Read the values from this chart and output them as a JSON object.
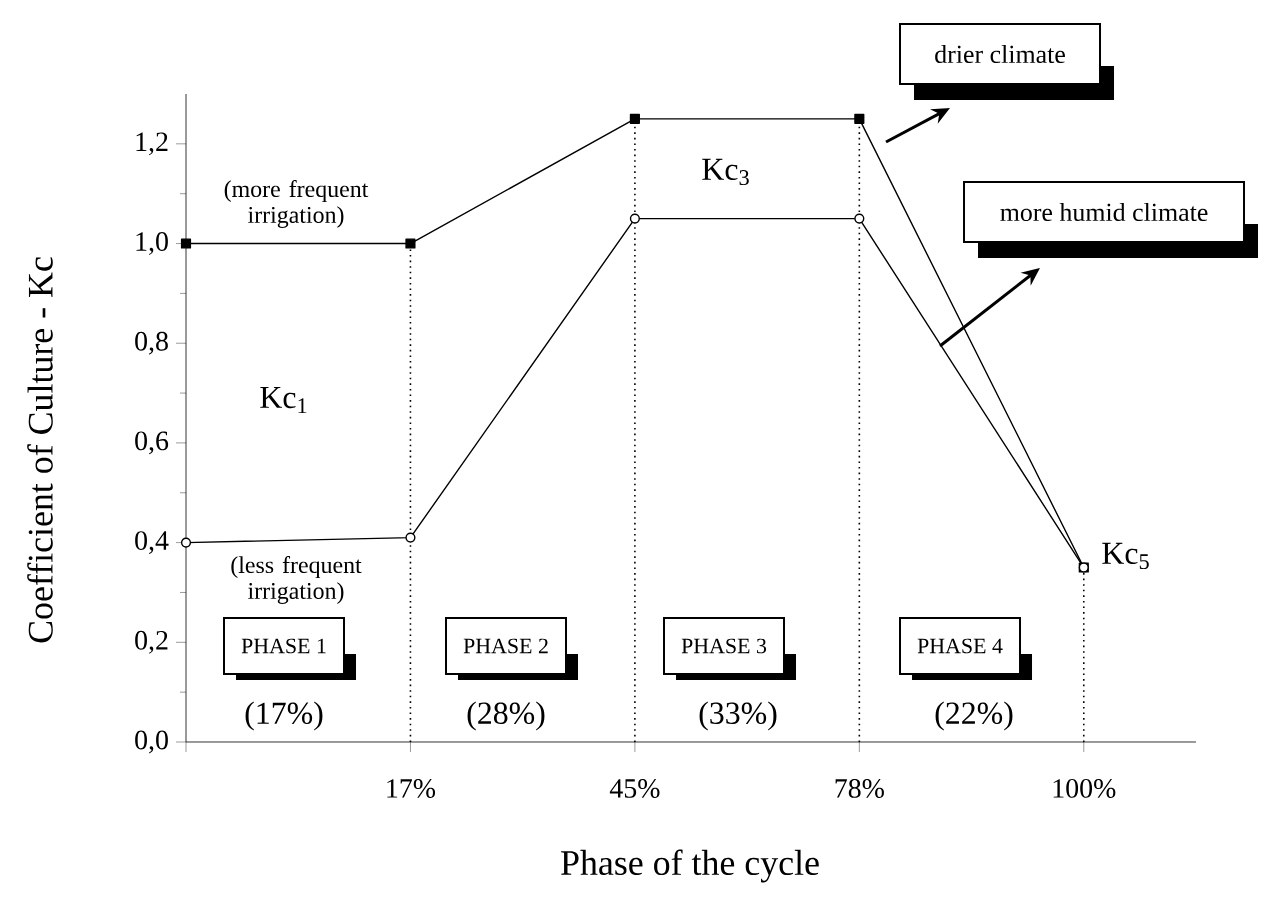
{
  "chart_data": {
    "type": "line",
    "xlabel": "Phase of the cycle",
    "ylabel": "Coefficient of Culture - Kc",
    "categories": [
      null,
      "17%",
      "45%",
      "78%",
      "100%"
    ],
    "series": [
      {
        "name": "drier climate",
        "color": "#000000",
        "marker": "square",
        "values": [
          1.0,
          1.0,
          1.25,
          1.25,
          0.35
        ]
      },
      {
        "name": "more humid climate",
        "color": "#000000",
        "marker": "circle",
        "values": [
          0.4,
          0.41,
          1.05,
          1.05,
          0.35
        ]
      }
    ],
    "ylim": [
      0,
      1.3
    ],
    "yticks": [
      {
        "value": 0,
        "label": "0,0"
      },
      {
        "value": 0.2,
        "label": "0,2"
      },
      {
        "value": 0.4,
        "label": "0,4"
      },
      {
        "value": 0.6,
        "label": "0,6"
      },
      {
        "value": 0.8,
        "label": "0,8"
      },
      {
        "value": 1.0,
        "label": "1,0"
      },
      {
        "value": 1.2,
        "label": "1,2"
      }
    ],
    "ref_lines": [
      {
        "axis": "x",
        "value": "17%",
        "color": "#000000",
        "line_style": "dotted"
      },
      {
        "axis": "x",
        "value": "45%",
        "color": "#000000",
        "line_style": "dotted"
      },
      {
        "axis": "x",
        "value": "78%",
        "color": "#000000",
        "line_style": "dotted"
      },
      {
        "axis": "x",
        "value": "100%",
        "color": "#000000",
        "line_style": "dotted"
      }
    ],
    "annotations": [
      "(more frequent irrigation)",
      "Kc$_{1}$",
      "(less frequent irrigation)",
      "Kc$_{3}$",
      "Kc$_{5}$",
      "PHASE 1",
      "PHASE 2",
      "PHASE 3",
      "PHASE 4",
      "(17%)",
      "(28%)",
      "(33%)",
      "(22%)"
    ],
    "grid": false,
    "legend": false,
    "line_style": "solid"
  }
}
